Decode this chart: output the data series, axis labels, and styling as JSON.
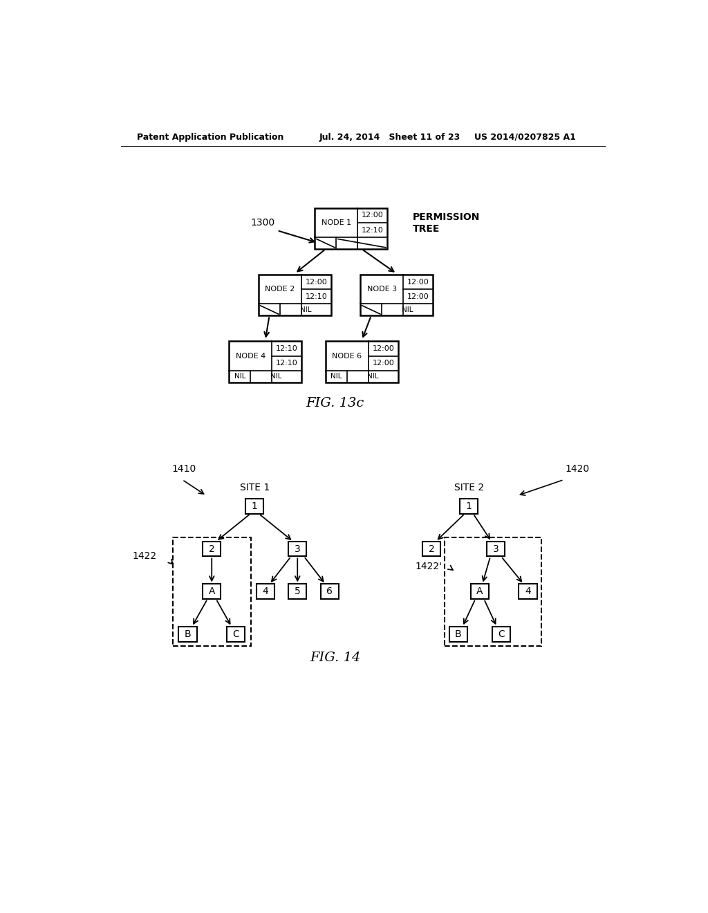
{
  "header_left": "Patent Application Publication",
  "header_mid": "Jul. 24, 2014   Sheet 11 of 23",
  "header_right": "US 2014/0207825 A1",
  "fig13c_label": "FIG. 13c",
  "fig14_label": "FIG. 14",
  "label_1300": "1300",
  "label_1410": "1410",
  "label_1420": "1420",
  "label_1422": "1422",
  "label_1422p": "1422'",
  "permission_tree": "PERMISSION\nTREE",
  "site1": "SITE 1",
  "site2": "SITE 2",
  "bg_color": "#ffffff",
  "line_color": "#000000"
}
